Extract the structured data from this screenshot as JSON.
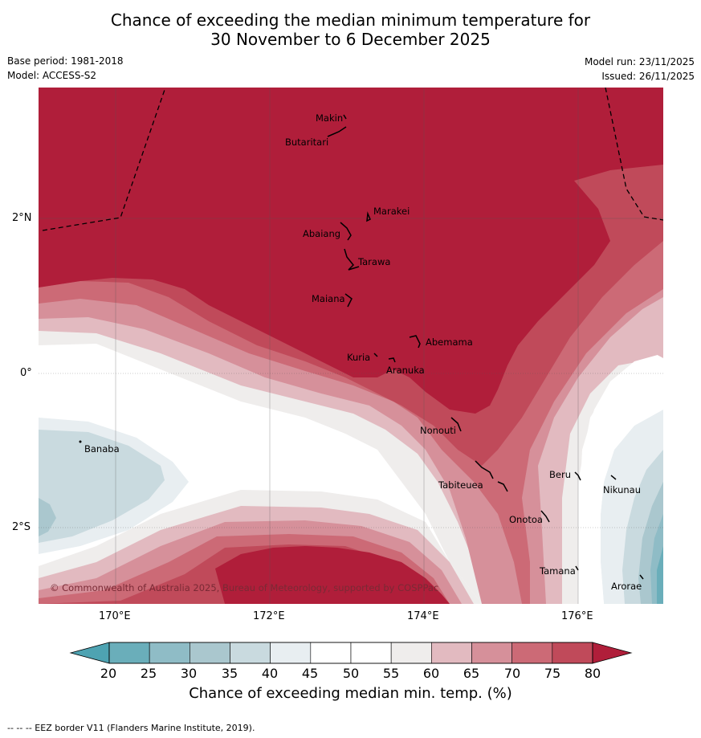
{
  "title": {
    "line1": "Chance of exceeding the median minimum temperature for",
    "line2": "30 November to 6 December 2025"
  },
  "meta": {
    "base_period": "Base period: 1981-2018",
    "model": "Model: ACCESS-S2",
    "model_run": "Model run: 23/11/2025",
    "issued": "Issued: 26/11/2025"
  },
  "axes": {
    "lon_labels": [
      "170°E",
      "172°E",
      "174°E",
      "176°E"
    ],
    "lat_labels": [
      "2°N",
      "0°",
      "2°S"
    ]
  },
  "islands": [
    "Makin",
    "Butaritari",
    "Marakei",
    "Abaiang",
    "Tarawa",
    "Maiana",
    "Abemama",
    "Kuria",
    "Aranuka",
    "Banaba",
    "Nonouti",
    "Tabiteuea",
    "Beru",
    "Nikunau",
    "Onotoa",
    "Tamana",
    "Arorae"
  ],
  "copyright": "© Commonwealth of Australia 2025, Bureau of Meteorology, supported by COSPPac",
  "colorbar": {
    "ticks": [
      "20",
      "25",
      "30",
      "35",
      "40",
      "45",
      "50",
      "55",
      "60",
      "65",
      "70",
      "75",
      "80"
    ],
    "colors": [
      "#6aaeba",
      "#8fbcc6",
      "#aac7ce",
      "#c9dadf",
      "#e8eef1",
      "#ffffff",
      "#ffffff",
      "#efedec",
      "#e2bac0",
      "#d6909a",
      "#cc6a76",
      "#c04a5a"
    ],
    "under_color": "#4ea3b2",
    "over_color": "#b01e3a",
    "label": "Chance of exceeding median min. temp. (%)"
  },
  "footer": "--  --  -- EEZ border V11 (Flanders Marine Institute, 2019)."
}
